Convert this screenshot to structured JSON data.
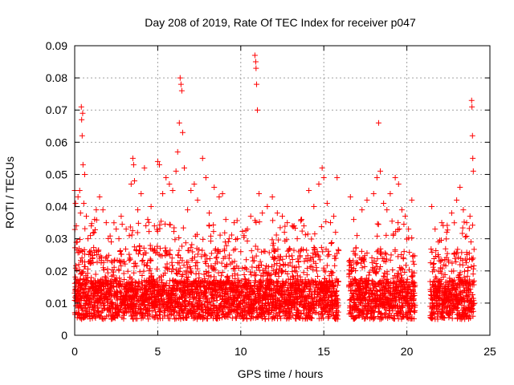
{
  "chart_data": {
    "type": "scatter",
    "title": "Day 208 of 2019, Rate Of TEC Index for receiver p047",
    "xlabel": "GPS time / hours",
    "ylabel": "ROTI / TECUs",
    "xlim": [
      0,
      25
    ],
    "ylim": [
      0,
      0.09
    ],
    "xticks": [
      0,
      5,
      10,
      15,
      20,
      25
    ],
    "yticks": [
      0,
      0.01,
      0.02,
      0.03,
      0.04,
      0.05,
      0.06,
      0.07,
      0.08,
      0.09
    ],
    "x_tick_labels": [
      "0",
      "5",
      "10",
      "15",
      "20",
      "25"
    ],
    "y_tick_labels": [
      "0",
      "0.01",
      "0.02",
      "0.03",
      "0.04",
      "0.05",
      "0.06",
      "0.07",
      "0.08",
      "0.09"
    ],
    "grid": true,
    "marker": "plus",
    "color": "#ff0000",
    "data_gaps_hours": [
      [
        15.9,
        16.5
      ],
      [
        20.5,
        21.4
      ]
    ],
    "series": [
      {
        "name": "ROTI",
        "points": [
          [
            0.0,
            0.045
          ],
          [
            0.05,
            0.041
          ],
          [
            0.1,
            0.034
          ],
          [
            0.15,
            0.029
          ],
          [
            0.2,
            0.043
          ],
          [
            0.25,
            0.022
          ],
          [
            0.3,
            0.045
          ],
          [
            0.35,
            0.038
          ],
          [
            0.4,
            0.071
          ],
          [
            0.42,
            0.067
          ],
          [
            0.45,
            0.062
          ],
          [
            0.48,
            0.069
          ],
          [
            0.5,
            0.053
          ],
          [
            0.55,
            0.041
          ],
          [
            0.6,
            0.05
          ],
          [
            0.7,
            0.037
          ],
          [
            0.8,
            0.03
          ],
          [
            0.9,
            0.026
          ],
          [
            1.0,
            0.034
          ],
          [
            1.2,
            0.036
          ],
          [
            1.3,
            0.039
          ],
          [
            1.5,
            0.043
          ],
          [
            1.7,
            0.039
          ],
          [
            1.9,
            0.035
          ],
          [
            2.2,
            0.029
          ],
          [
            2.5,
            0.033
          ],
          [
            2.8,
            0.037
          ],
          [
            3.1,
            0.033
          ],
          [
            3.4,
            0.047
          ],
          [
            3.5,
            0.055
          ],
          [
            3.55,
            0.053
          ],
          [
            3.6,
            0.048
          ],
          [
            3.8,
            0.039
          ],
          [
            4.0,
            0.044
          ],
          [
            4.2,
            0.052
          ],
          [
            4.4,
            0.036
          ],
          [
            4.6,
            0.04
          ],
          [
            4.8,
            0.034
          ],
          [
            5.0,
            0.054
          ],
          [
            5.1,
            0.053
          ],
          [
            5.3,
            0.044
          ],
          [
            5.5,
            0.049
          ],
          [
            5.7,
            0.047
          ],
          [
            5.9,
            0.045
          ],
          [
            6.1,
            0.051
          ],
          [
            6.2,
            0.057
          ],
          [
            6.3,
            0.066
          ],
          [
            6.35,
            0.08
          ],
          [
            6.4,
            0.078
          ],
          [
            6.45,
            0.076
          ],
          [
            6.5,
            0.063
          ],
          [
            6.6,
            0.052
          ],
          [
            6.8,
            0.039
          ],
          [
            7.0,
            0.045
          ],
          [
            7.2,
            0.047
          ],
          [
            7.4,
            0.042
          ],
          [
            7.7,
            0.055
          ],
          [
            7.9,
            0.049
          ],
          [
            8.1,
            0.038
          ],
          [
            8.4,
            0.046
          ],
          [
            8.7,
            0.043
          ],
          [
            8.9,
            0.044
          ],
          [
            9.1,
            0.036
          ],
          [
            9.3,
            0.03
          ],
          [
            9.6,
            0.035
          ],
          [
            9.8,
            0.03
          ],
          [
            10.0,
            0.026
          ],
          [
            10.2,
            0.031
          ],
          [
            10.4,
            0.033
          ],
          [
            10.6,
            0.037
          ],
          [
            10.85,
            0.087
          ],
          [
            10.9,
            0.085
          ],
          [
            10.92,
            0.083
          ],
          [
            10.95,
            0.078
          ],
          [
            11.0,
            0.07
          ],
          [
            11.1,
            0.044
          ],
          [
            11.3,
            0.038
          ],
          [
            11.6,
            0.04
          ],
          [
            11.9,
            0.043
          ],
          [
            12.2,
            0.038
          ],
          [
            12.5,
            0.037
          ],
          [
            12.8,
            0.035
          ],
          [
            13.1,
            0.034
          ],
          [
            13.4,
            0.03
          ],
          [
            13.8,
            0.034
          ],
          [
            14.1,
            0.045
          ],
          [
            14.4,
            0.04
          ],
          [
            14.7,
            0.047
          ],
          [
            14.9,
            0.052
          ],
          [
            15.0,
            0.049
          ],
          [
            15.2,
            0.041
          ],
          [
            15.4,
            0.035
          ],
          [
            15.6,
            0.037
          ],
          [
            15.8,
            0.049
          ],
          [
            16.6,
            0.043
          ],
          [
            16.8,
            0.036
          ],
          [
            17.0,
            0.031
          ],
          [
            17.3,
            0.039
          ],
          [
            17.6,
            0.042
          ],
          [
            18.0,
            0.044
          ],
          [
            18.2,
            0.049
          ],
          [
            18.3,
            0.066
          ],
          [
            18.4,
            0.051
          ],
          [
            18.6,
            0.041
          ],
          [
            18.8,
            0.039
          ],
          [
            19.0,
            0.044
          ],
          [
            19.3,
            0.049
          ],
          [
            19.5,
            0.047
          ],
          [
            19.7,
            0.039
          ],
          [
            19.9,
            0.037
          ],
          [
            20.1,
            0.033
          ],
          [
            20.3,
            0.042
          ],
          [
            21.5,
            0.04
          ],
          [
            21.7,
            0.033
          ],
          [
            21.9,
            0.029
          ],
          [
            22.1,
            0.035
          ],
          [
            22.4,
            0.032
          ],
          [
            22.7,
            0.038
          ],
          [
            23.0,
            0.042
          ],
          [
            23.2,
            0.046
          ],
          [
            23.4,
            0.039
          ],
          [
            23.6,
            0.035
          ],
          [
            23.8,
            0.037
          ],
          [
            23.9,
            0.073
          ],
          [
            23.92,
            0.071
          ],
          [
            23.95,
            0.062
          ],
          [
            23.97,
            0.055
          ],
          [
            24.0,
            0.051
          ]
        ]
      }
    ]
  }
}
